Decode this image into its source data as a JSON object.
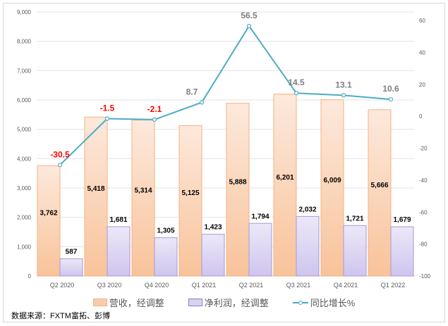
{
  "chart_data": {
    "type": "bar+line",
    "categories": [
      "Q2 2020",
      "Q3 2020",
      "Q4 2020",
      "Q1 2021",
      "Q2 2021",
      "Q3 2021",
      "Q4 2021",
      "Q1 2022"
    ],
    "series": [
      {
        "name": "营收，经调整",
        "type": "bar",
        "axis": "left",
        "color": "#f4b183",
        "values": [
          3762,
          5418,
          5314,
          5125,
          5888,
          6201,
          6009,
          5666
        ],
        "labels": [
          "3,762",
          "5,418",
          "5,314",
          "5,125",
          "5,888",
          "6,201",
          "6,009",
          "5,666"
        ]
      },
      {
        "name": "净利润，经调整",
        "type": "bar",
        "axis": "left",
        "color": "#b4a7d6",
        "values": [
          587,
          1681,
          1305,
          1423,
          1794,
          2032,
          1721,
          1679
        ],
        "labels": [
          "587",
          "1,681",
          "1,305",
          "1,423",
          "1,794",
          "2,032",
          "1,721",
          "1,679"
        ]
      },
      {
        "name": "同比增长%",
        "type": "line",
        "axis": "right",
        "color": "#4bacc6",
        "values": [
          -30.5,
          -1.5,
          -2.1,
          8.7,
          56.5,
          14.5,
          13.1,
          10.6
        ],
        "labels": [
          "-30.5",
          "-1.5",
          "-2.1",
          "8.7",
          "56.5",
          "14.5",
          "13.1",
          "10.6"
        ]
      }
    ],
    "left_axis": {
      "ylim": [
        0,
        9000
      ],
      "ticks": [
        "0",
        "1,000",
        "2,000",
        "3,000",
        "4,000",
        "5,000",
        "6,000",
        "7,000",
        "8,000",
        "9,000"
      ]
    },
    "right_axis": {
      "ylim": [
        -100,
        60
      ],
      "ticks": [
        "-100",
        "-80",
        "-60",
        "-40",
        "-20",
        "0",
        "20",
        "40",
        "60"
      ]
    },
    "grid": true,
    "legend_position": "bottom"
  },
  "source": "数据来源：FXTM富拓、彭博"
}
